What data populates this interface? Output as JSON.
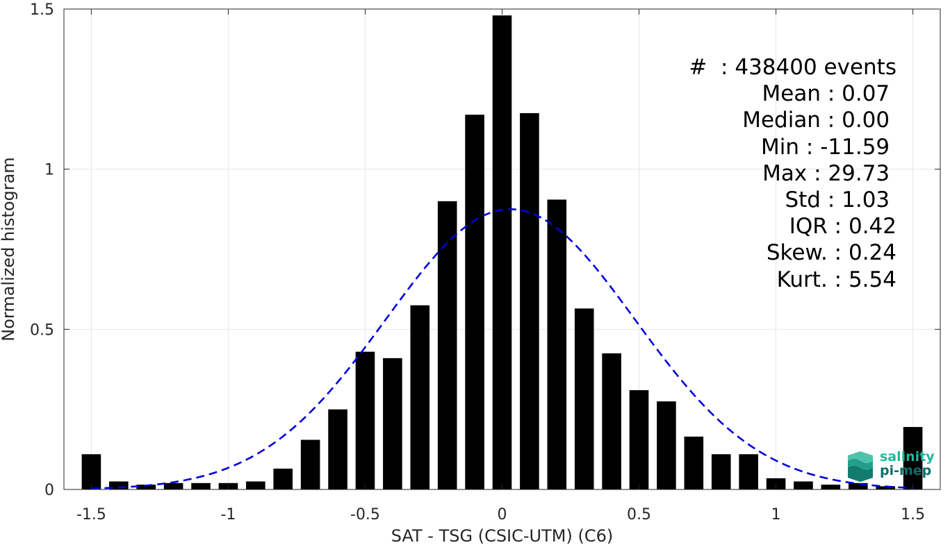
{
  "chart_data": {
    "type": "bar",
    "xlabel": "SAT - TSG (CSIC-UTM) (C6)",
    "ylabel": "Normalized histogram",
    "xlim": [
      -1.6,
      1.6
    ],
    "ylim": [
      0,
      1.5
    ],
    "xticks": [
      "-1.5",
      "-1",
      "-0.5",
      "0",
      "0.5",
      "1",
      "1.5"
    ],
    "xtick_values": [
      -1.5,
      -1,
      -0.5,
      0,
      0.5,
      1,
      1.5
    ],
    "yticks": [
      "0",
      "0.5",
      "1",
      "1.5"
    ],
    "ytick_values": [
      0,
      0.5,
      1,
      1.5
    ],
    "grid": true,
    "bin_width": 0.1,
    "bar_fraction": 0.7,
    "bar_color": "#000000",
    "bins": [
      {
        "x": -1.5,
        "y": 0.11
      },
      {
        "x": -1.4,
        "y": 0.025
      },
      {
        "x": -1.3,
        "y": 0.015
      },
      {
        "x": -1.2,
        "y": 0.02
      },
      {
        "x": -1.1,
        "y": 0.02
      },
      {
        "x": -1.0,
        "y": 0.02
      },
      {
        "x": -0.9,
        "y": 0.025
      },
      {
        "x": -0.8,
        "y": 0.065
      },
      {
        "x": -0.7,
        "y": 0.155
      },
      {
        "x": -0.6,
        "y": 0.25
      },
      {
        "x": -0.5,
        "y": 0.43
      },
      {
        "x": -0.4,
        "y": 0.41
      },
      {
        "x": -0.3,
        "y": 0.575
      },
      {
        "x": -0.2,
        "y": 0.9
      },
      {
        "x": -0.1,
        "y": 1.17
      },
      {
        "x": 0.0,
        "y": 1.48
      },
      {
        "x": 0.1,
        "y": 1.175
      },
      {
        "x": 0.2,
        "y": 0.905
      },
      {
        "x": 0.3,
        "y": 0.565
      },
      {
        "x": 0.4,
        "y": 0.425
      },
      {
        "x": 0.5,
        "y": 0.31
      },
      {
        "x": 0.6,
        "y": 0.275
      },
      {
        "x": 0.7,
        "y": 0.165
      },
      {
        "x": 0.8,
        "y": 0.11
      },
      {
        "x": 0.9,
        "y": 0.11
      },
      {
        "x": 1.0,
        "y": 0.035
      },
      {
        "x": 1.1,
        "y": 0.025
      },
      {
        "x": 1.2,
        "y": 0.015
      },
      {
        "x": 1.3,
        "y": 0.02
      },
      {
        "x": 1.4,
        "y": 0.01
      },
      {
        "x": 1.5,
        "y": 0.195
      }
    ],
    "fit_curve": {
      "style": "dashed",
      "color": "#0000dd",
      "type": "gaussian",
      "mean": 0.03,
      "std": 0.455,
      "peak": 0.875,
      "x_range": [
        -1.5,
        1.5
      ]
    }
  },
  "stats": [
    "#  : 438400 events",
    "Mean : 0.07 ",
    "Median : 0.00 ",
    "Min : -11.59 ",
    "Max : 29.73 ",
    "Std : 1.03 ",
    "IQR : 0.42",
    "Skew. : 0.24",
    "Kurt. : 5.54"
  ],
  "logo": {
    "line1": "salinity",
    "line2": "pi-mep",
    "color1": "#1fb89a",
    "color2": "#0e6f6b"
  }
}
